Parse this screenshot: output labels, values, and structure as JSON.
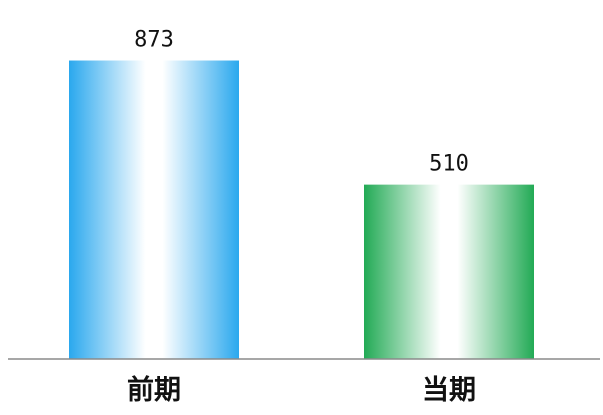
{
  "chart_data": {
    "type": "bar",
    "categories": [
      "前期",
      "当期"
    ],
    "values": [
      873,
      510
    ],
    "data_labels": [
      "873",
      "510"
    ],
    "title": "",
    "xlabel": "",
    "ylabel": "",
    "ylim": [
      0,
      1050
    ],
    "grid": false,
    "legend": "none",
    "colors": [
      "#2aa8ee",
      "#22aa55"
    ]
  }
}
